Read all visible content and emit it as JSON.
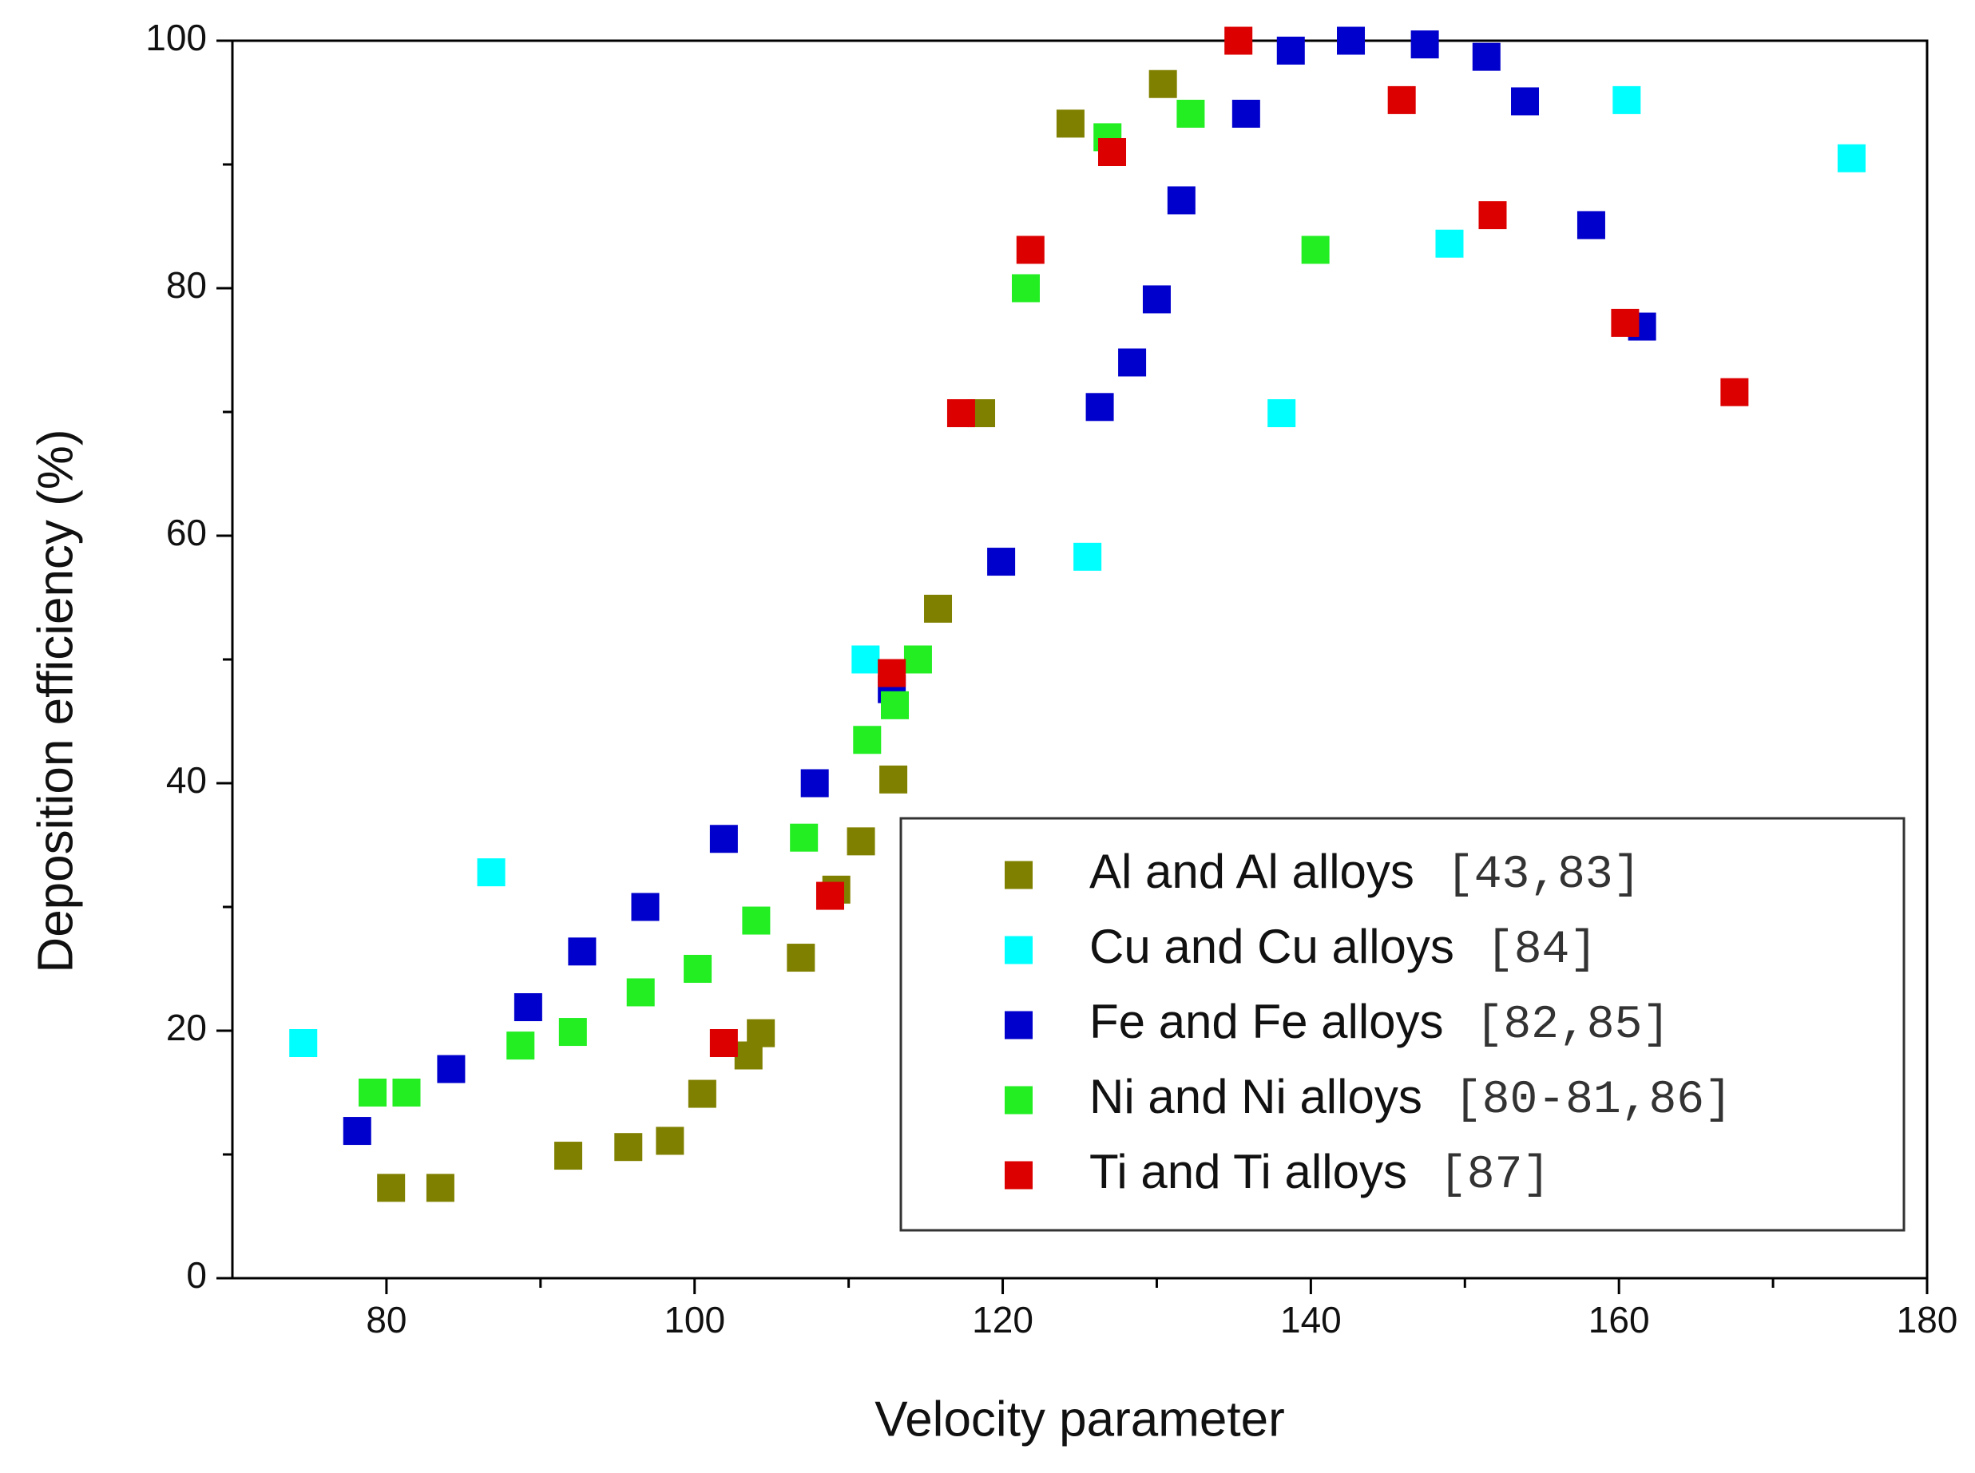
{
  "chart_data": {
    "type": "scatter",
    "xlabel": "Velocity parameter",
    "ylabel": "Deposition efficiency (%)",
    "xlim": [
      70,
      180
    ],
    "xticks": [
      80,
      100,
      120,
      140,
      160,
      180
    ],
    "xticks_minor": [
      90,
      110,
      130,
      150,
      170
    ],
    "ylim": [
      0,
      100
    ],
    "yticks": [
      0,
      20,
      40,
      60,
      80,
      100
    ],
    "yticks_minor": [
      10,
      30,
      50,
      70,
      90
    ],
    "legend": "lower right",
    "series": [
      {
        "name": "Al and Al alloys",
        "reference": "[43,83]",
        "color": "#808000",
        "x": [
          80.3,
          83.5,
          91.8,
          95.7,
          98.4,
          100.5,
          103.5,
          104.3,
          106.9,
          109.2,
          110.8,
          112.9,
          115.8,
          118.6,
          124.4,
          130.4
        ],
        "values": [
          7.3,
          7.3,
          9.9,
          10.6,
          11.1,
          14.9,
          18,
          19.8,
          25.9,
          31.4,
          35.3,
          40.3,
          54.1,
          69.9,
          93.3,
          96.5
        ]
      },
      {
        "name": "Cu and Cu alloys",
        "reference": "[84]",
        "color": "#00ffff",
        "x": [
          74.6,
          86.8,
          111.1,
          125.5,
          138.1,
          149,
          160.5,
          175.1
        ],
        "values": [
          19,
          32.8,
          50,
          58.3,
          69.9,
          83.6,
          95.2,
          90.5
        ]
      },
      {
        "name": "Fe and Fe alloys",
        "reference": "[82,85]",
        "color": "#0000cc",
        "x": [
          78.1,
          84.2,
          89.2,
          92.7,
          96.8,
          101.9,
          107.8,
          112.8,
          119.9,
          126.3,
          128.4,
          130,
          131.6,
          135.8,
          138.7,
          142.6,
          147.4,
          151.4,
          153.9,
          158.2,
          161.5
        ],
        "values": [
          11.9,
          16.9,
          21.9,
          26.4,
          30,
          35.5,
          40,
          47.6,
          57.9,
          70.4,
          74,
          79.1,
          87.1,
          94.1,
          99.2,
          100,
          99.7,
          98.7,
          95.1,
          85.1,
          76.9
        ]
      },
      {
        "name": "Ni and Ni alloys",
        "reference": "[80-81,86]",
        "color": "#22ee22",
        "x": [
          79.1,
          81.3,
          88.7,
          92.1,
          96.5,
          100.2,
          104,
          107.1,
          111.2,
          113,
          114.5,
          121.5,
          126.8,
          132.2,
          140.3
        ],
        "values": [
          15,
          15,
          18.8,
          19.9,
          23.1,
          25,
          28.9,
          35.6,
          43.5,
          46.3,
          50,
          80,
          92.2,
          94.1,
          83.1
        ]
      },
      {
        "name": "Ti and Ti alloys",
        "reference": "[87]",
        "color": "#dd0000",
        "x": [
          101.9,
          108.8,
          112.8,
          117.3,
          121.8,
          127.1,
          135.3,
          145.9,
          151.8,
          160.4,
          167.5
        ],
        "values": [
          19,
          30.9,
          48.9,
          69.9,
          83.1,
          91,
          100,
          95.2,
          85.9,
          77.2,
          71.6
        ]
      }
    ]
  }
}
